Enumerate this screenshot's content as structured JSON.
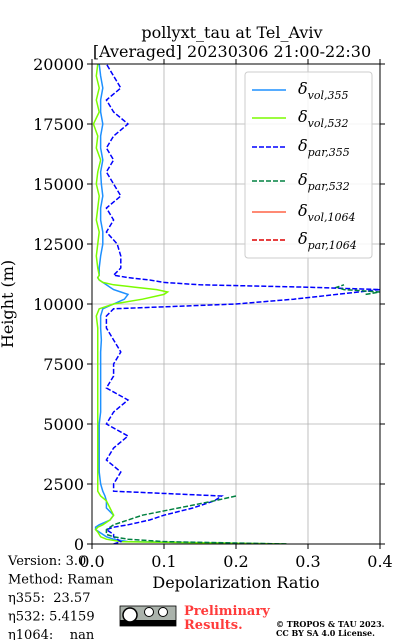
{
  "chart_data": {
    "type": "line",
    "title": "pollyxt_tau at Tel_Aviv",
    "subtitle": "[Averaged] 20230306 21:00-22:30",
    "x_label": "Depolarization Ratio",
    "y_label": "Height (m)",
    "y": [
      0,
      100,
      200,
      300,
      400,
      500,
      600,
      700,
      800,
      1000,
      1200,
      1500,
      1800,
      2000,
      2200,
      2500,
      3000,
      3500,
      4000,
      4500,
      5000,
      5500,
      6000,
      6500,
      7000,
      7500,
      8000,
      8500,
      9000,
      9500,
      9800,
      10000,
      10200,
      10400,
      10500,
      10600,
      10700,
      10800,
      10900,
      11000,
      11100,
      11200,
      11500,
      12000,
      12500,
      13000,
      13500,
      14000,
      14500,
      15000,
      15500,
      16000,
      16500,
      17000,
      17500,
      18000,
      18500,
      19000,
      19500,
      20000
    ],
    "series": [
      {
        "name": "δvol,355",
        "color": "#1e90ff",
        "dashed": false,
        "values": [
          0.27,
          0.05,
          0.03,
          0.02,
          0.015,
          0.01,
          0.005,
          0.005,
          0.01,
          0.025,
          0.03,
          0.02,
          0.02,
          0.018,
          0.015,
          0.012,
          0.01,
          0.01,
          0.01,
          0.01,
          0.01,
          0.012,
          0.012,
          0.012,
          0.012,
          0.012,
          0.012,
          0.013,
          0.012,
          0.012,
          0.015,
          0.03,
          0.045,
          0.05,
          0.04,
          0.03,
          0.025,
          0.02,
          0.015,
          0.01,
          0.008,
          0.01,
          0.01,
          0.012,
          0.015,
          0.015,
          0.012,
          0.012,
          0.015,
          0.013,
          0.012,
          0.015,
          0.012,
          0.012,
          0.015,
          0.012,
          0.012,
          0.015,
          0.012,
          0.01
        ]
      },
      {
        "name": "δvol,532",
        "color": "#7cfc00",
        "dashed": false,
        "values": [
          0.27,
          0.04,
          0.02,
          0.012,
          0.01,
          0.008,
          0.005,
          0.008,
          0.015,
          0.025,
          0.03,
          0.025,
          0.02,
          0.012,
          0.008,
          0.008,
          0.008,
          0.008,
          0.008,
          0.008,
          0.008,
          0.008,
          0.008,
          0.008,
          0.008,
          0.008,
          0.008,
          0.008,
          0.008,
          0.006,
          0.01,
          0.03,
          0.07,
          0.1,
          0.105,
          0.09,
          0.06,
          0.03,
          0.015,
          0.01,
          0.008,
          0.01,
          0.008,
          0.006,
          0.008,
          0.01,
          0.006,
          0.008,
          0.01,
          0.006,
          0.008,
          0.012,
          0.006,
          0.008,
          0.002,
          0.01,
          0.006,
          0.01,
          0.006,
          0.008
        ]
      },
      {
        "name": "δpar,355",
        "color": "#0000ff",
        "dashed": true,
        "values": [
          0.03,
          0.04,
          0.035,
          0.03,
          0.03,
          0.025,
          0.02,
          0.03,
          0.05,
          0.08,
          0.1,
          0.14,
          0.17,
          0.18,
          0.03,
          0.03,
          0.04,
          0.02,
          0.03,
          0.05,
          0.02,
          0.03,
          0.05,
          0.02,
          0.03,
          0.03,
          0.04,
          0.03,
          0.02,
          0.02,
          0.03,
          0.2,
          0.28,
          0.34,
          0.37,
          0.4,
          0.3,
          0.15,
          0.1,
          0.08,
          0.05,
          0.03,
          0.04,
          0.04,
          0.035,
          0.02,
          0.03,
          0.02,
          0.04,
          0.03,
          0.02,
          0.03,
          0.02,
          0.03,
          0.05,
          0.03,
          0.02,
          0.04,
          0.03,
          0.02
        ]
      },
      {
        "name": "δpar,532",
        "color": "#008040",
        "dashed": true,
        "values": [
          0.27,
          0.1,
          0.05,
          0.03,
          0.02,
          0.02,
          0.02,
          0.025,
          0.03,
          0.05,
          0.07,
          0.12,
          0.17,
          0.2,
          null,
          null,
          null,
          null,
          null,
          null,
          null,
          null,
          null,
          null,
          null,
          null,
          null,
          null,
          null,
          null,
          null,
          null,
          null,
          0.38,
          0.4,
          0.35,
          0.34,
          0.35,
          null,
          null,
          null,
          null,
          null,
          null,
          null,
          null,
          null,
          null,
          null,
          null,
          null,
          null,
          null,
          null,
          null,
          null,
          null,
          null,
          null,
          null
        ]
      },
      {
        "name": "δvol,1064",
        "color": "#ff6347",
        "dashed": false,
        "values": [
          null,
          null,
          null,
          null,
          null,
          null,
          null,
          null,
          null,
          null,
          null,
          null,
          null,
          null,
          null,
          null,
          null,
          null,
          null,
          null,
          null,
          null,
          null,
          null,
          null,
          null,
          null,
          null,
          null,
          null,
          null,
          null,
          null,
          null,
          null,
          null,
          null,
          null,
          null,
          null,
          null,
          null,
          null,
          null,
          null,
          null,
          null,
          null,
          null,
          null,
          null,
          null,
          null,
          null,
          null,
          null,
          null,
          null,
          null,
          null
        ]
      },
      {
        "name": "δpar,1064",
        "color": "#dd0000",
        "dashed": true,
        "values": [
          null,
          null,
          null,
          null,
          null,
          null,
          null,
          null,
          null,
          null,
          null,
          null,
          null,
          null,
          null,
          null,
          null,
          null,
          null,
          null,
          null,
          null,
          null,
          null,
          null,
          null,
          null,
          null,
          null,
          null,
          null,
          null,
          null,
          null,
          null,
          null,
          null,
          null,
          null,
          null,
          null,
          null,
          null,
          null,
          null,
          null,
          null,
          null,
          null,
          null,
          null,
          null,
          null,
          null,
          null,
          null,
          null,
          null,
          null,
          null
        ]
      }
    ],
    "xlim": [
      0,
      0.4
    ],
    "xticks": [
      {
        "value": 0,
        "label": "0.0"
      },
      0.1,
      0.2,
      0.3,
      0.4
    ],
    "ylim": [
      0,
      20000
    ],
    "yticks": [
      0,
      2500,
      5000,
      7500,
      10000,
      12500,
      15000,
      17500,
      20000
    ],
    "grid": true,
    "legend": "upper right",
    "annotations": [
      "Version: 3.0",
      "Method: Raman",
      "η355:  23.57",
      "η532: 5.4159",
      "η1064:    nan"
    ],
    "watermark": [
      "Preliminary",
      "Results."
    ],
    "copyright": [
      "© TROPOS & TAU 2023.",
      "CC BY SA 4.0 License."
    ]
  }
}
